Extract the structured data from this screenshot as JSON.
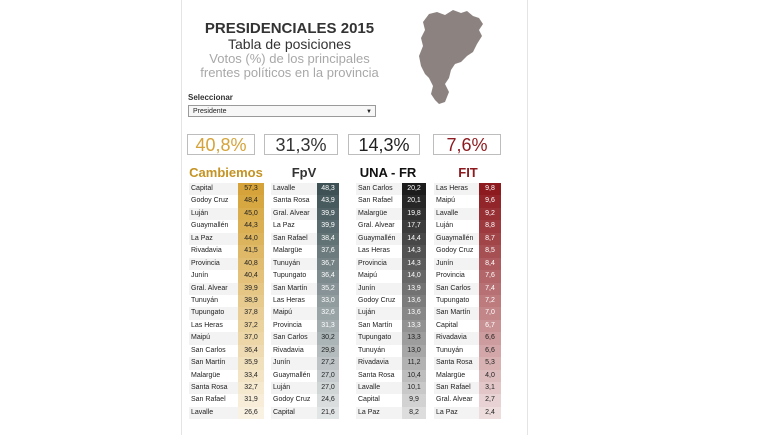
{
  "header": {
    "title": "PRESIDENCIALES 2015",
    "subtitle": "Tabla de posiciones",
    "description_line1": "Votos (%) de los principales",
    "description_line2": "frentes políticos en la provincia"
  },
  "map": {
    "icon": "mendoza-map-icon",
    "color": "#8c8381"
  },
  "selector": {
    "label": "Seleccionar",
    "value": "Presidente"
  },
  "columns": [
    {
      "name": "Cambiemos",
      "total": "40,8%",
      "color": "#d5a339",
      "header_color": "#c49323",
      "rows": [
        [
          "Capital",
          "57,3"
        ],
        [
          "Godoy Cruz",
          "48,4"
        ],
        [
          "Luján",
          "45,0"
        ],
        [
          "Guaymallén",
          "44,3"
        ],
        [
          "La Paz",
          "44,0"
        ],
        [
          "Rivadavia",
          "41,5"
        ],
        [
          "Provincia",
          "40,8"
        ],
        [
          "Junín",
          "40,4"
        ],
        [
          "Gral. Alvear",
          "39,9"
        ],
        [
          "Tunuyán",
          "38,9"
        ],
        [
          "Tupungato",
          "37,8"
        ],
        [
          "Las Heras",
          "37,2"
        ],
        [
          "Maipú",
          "37,0"
        ],
        [
          "San Carlos",
          "36,4"
        ],
        [
          "San Martín",
          "35,9"
        ],
        [
          "Malargüe",
          "33,4"
        ],
        [
          "Santa Rosa",
          "32,7"
        ],
        [
          "San Rafael",
          "31,9"
        ],
        [
          "Lavalle",
          "26,6"
        ]
      ]
    },
    {
      "name": "FpV",
      "total": "31,3%",
      "color": "#3e5256",
      "header_color": "#333333",
      "rows": [
        [
          "Lavalle",
          "48,3"
        ],
        [
          "Santa Rosa",
          "43,9"
        ],
        [
          "Gral. Alvear",
          "39,9"
        ],
        [
          "La Paz",
          "39,9"
        ],
        [
          "San Rafael",
          "38,4"
        ],
        [
          "Malargüe",
          "37,6"
        ],
        [
          "Tunuyán",
          "36,7"
        ],
        [
          "Tupungato",
          "36,4"
        ],
        [
          "San Martín",
          "35,2"
        ],
        [
          "Las Heras",
          "33,0"
        ],
        [
          "Maipú",
          "32,6"
        ],
        [
          "Provincia",
          "31,3"
        ],
        [
          "San Carlos",
          "30,2"
        ],
        [
          "Rivadavia",
          "29,8"
        ],
        [
          "Junín",
          "27,2"
        ],
        [
          "Guaymallén",
          "27,0"
        ],
        [
          "Luján",
          "27,0"
        ],
        [
          "Godoy Cruz",
          "24,6"
        ],
        [
          "Capital",
          "21,6"
        ]
      ]
    },
    {
      "name": "UNA - FR",
      "total": "14,3%",
      "color": "#1c1c1c",
      "header_color": "#111111",
      "rows": [
        [
          "San Carlos",
          "20,2"
        ],
        [
          "San Rafael",
          "20,1"
        ],
        [
          "Malargüe",
          "19,8"
        ],
        [
          "Gral. Alvear",
          "17,7"
        ],
        [
          "Guaymallén",
          "14,4"
        ],
        [
          "Las Heras",
          "14,3"
        ],
        [
          "Provincia",
          "14,3"
        ],
        [
          "Maipú",
          "14,0"
        ],
        [
          "Junín",
          "13,9"
        ],
        [
          "Godoy Cruz",
          "13,6"
        ],
        [
          "Luján",
          "13,6"
        ],
        [
          "San Martín",
          "13,3"
        ],
        [
          "Tupungato",
          "13,3"
        ],
        [
          "Tunuyán",
          "13,0"
        ],
        [
          "Rivadavia",
          "11,2"
        ],
        [
          "Santa Rosa",
          "10,4"
        ],
        [
          "Lavalle",
          "10,1"
        ],
        [
          "Capital",
          "9,9"
        ],
        [
          "La Paz",
          "8,2"
        ]
      ]
    },
    {
      "name": "FIT",
      "total": "7,6%",
      "color": "#8c1a1f",
      "header_color": "#8c1a1f",
      "rows": [
        [
          "Las Heras",
          "9,8"
        ],
        [
          "Maipú",
          "9,6"
        ],
        [
          "Lavalle",
          "9,2"
        ],
        [
          "Luján",
          "8,8"
        ],
        [
          "Guaymallén",
          "8,7"
        ],
        [
          "Godoy Cruz",
          "8,5"
        ],
        [
          "Junín",
          "8,4"
        ],
        [
          "Provincia",
          "7,6"
        ],
        [
          "San Carlos",
          "7,4"
        ],
        [
          "Tupungato",
          "7,2"
        ],
        [
          "San Martín",
          "7,0"
        ],
        [
          "Capital",
          "6,7"
        ],
        [
          "Rivadavia",
          "6,6"
        ],
        [
          "Tunuyán",
          "6,6"
        ],
        [
          "Santa Rosa",
          "5,3"
        ],
        [
          "Malargüe",
          "4,0"
        ],
        [
          "San Rafael",
          "3,1"
        ],
        [
          "Gral. Alvear",
          "2,7"
        ],
        [
          "La Paz",
          "2,4"
        ]
      ]
    }
  ]
}
